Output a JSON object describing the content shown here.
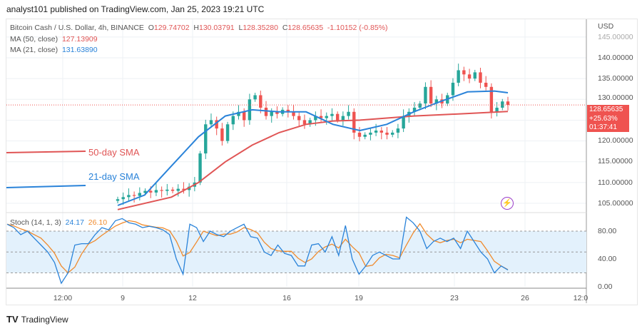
{
  "published": "analyst101 published on TradingView.com, Jan 25, 2023 19:21 UTC",
  "symbol": {
    "name": "Bitcoin Cash / U.S. Dollar, 4h, BINANCE",
    "o_label": "O",
    "open": "129.74702",
    "h_label": "H",
    "high": "130.03791",
    "l_label": "L",
    "low": "128.35280",
    "c_label": "C",
    "close": "128.65635",
    "change": "-1.10152 (-0.85%)"
  },
  "ma50": {
    "label": "MA (50, close)",
    "value": "127.13909",
    "color": "#e05555"
  },
  "ma21": {
    "label": "MA (21, close)",
    "value": "131.63890",
    "color": "#2a83d9"
  },
  "stoch": {
    "label": "Stoch (14, 1, 3)",
    "k": "24.17",
    "d": "26.10",
    "k_color": "#2a83d9",
    "d_color": "#f08a2c"
  },
  "price_axis": {
    "currency": "USD",
    "ticks": [
      "145.00000",
      "140.00000",
      "135.00000",
      "130.00000",
      "120.00000",
      "115.00000",
      "110.00000",
      "105.00000"
    ]
  },
  "price_badge": {
    "price": "128.65635",
    "change": "+25.63%",
    "countdown": "01:37:41"
  },
  "stoch_axis": {
    "ticks": [
      "80.00",
      "40.00",
      "0.00"
    ]
  },
  "time_axis": {
    "ticks": [
      "12:00",
      "9",
      "12",
      "16",
      "19",
      "23",
      "26",
      "12:0"
    ]
  },
  "annotations": {
    "sma50": "50-day SMA",
    "sma21": "21-day SMA"
  },
  "brand": "TradingView",
  "colors": {
    "up": "#26a69a",
    "down": "#ef5350",
    "stoch_band": "#e3f1fc"
  },
  "chart_data": {
    "type": "candlestick",
    "closes": [
      106,
      106.5,
      107,
      106.8,
      107.5,
      108,
      107.6,
      108.2,
      108,
      108.3,
      108,
      108.5,
      108.2,
      109,
      110,
      117,
      124,
      125,
      123,
      120,
      124,
      126,
      127,
      125,
      130,
      131,
      128,
      126,
      127,
      126.5,
      127.5,
      127,
      126,
      125,
      124,
      125,
      126,
      125.5,
      126,
      126.5,
      125,
      126,
      127,
      122,
      121,
      121.5,
      122,
      122.5,
      122,
      121.5,
      122,
      123,
      126,
      127,
      128,
      129,
      133,
      129,
      130,
      129,
      131,
      134,
      137,
      136,
      135,
      136.5,
      134,
      133,
      127,
      128,
      129.5,
      128.66
    ],
    "ma21": [
      [
        0,
        104.5
      ],
      [
        10,
        107
      ],
      [
        20,
        114
      ],
      [
        30,
        121
      ],
      [
        40,
        126
      ],
      [
        50,
        127.5
      ],
      [
        60,
        127
      ],
      [
        70,
        127
      ],
      [
        80,
        124
      ],
      [
        90,
        122.5
      ],
      [
        100,
        124
      ],
      [
        110,
        127
      ],
      [
        120,
        129.5
      ],
      [
        130,
        131.8
      ],
      [
        140,
        132
      ],
      [
        145,
        131.6
      ]
    ],
    "ma50": [
      [
        0,
        103.5
      ],
      [
        20,
        106.5
      ],
      [
        30,
        110
      ],
      [
        40,
        115
      ],
      [
        50,
        119
      ],
      [
        60,
        122
      ],
      [
        70,
        124
      ],
      [
        80,
        124.8
      ],
      [
        90,
        125
      ],
      [
        100,
        125.5
      ],
      [
        110,
        126
      ],
      [
        120,
        126.3
      ],
      [
        130,
        126.6
      ],
      [
        145,
        127.1
      ]
    ],
    "ylim": [
      103,
      146
    ],
    "stoch_k": [
      90,
      85,
      75,
      80,
      70,
      60,
      50,
      35,
      5,
      20,
      60,
      62,
      62,
      75,
      85,
      82,
      95,
      98,
      92,
      90,
      85,
      87,
      85,
      82,
      75,
      40,
      18,
      90,
      85,
      65,
      80,
      75,
      72,
      80,
      85,
      90,
      72,
      70,
      50,
      45,
      60,
      48,
      45,
      30,
      30,
      60,
      62,
      50,
      72,
      45,
      88,
      40,
      18,
      30,
      45,
      50,
      45,
      40,
      40,
      100,
      92,
      80,
      55,
      65,
      70,
      65,
      70,
      55,
      80,
      65,
      50,
      40,
      20,
      30,
      24.17
    ],
    "stoch_ylim": [
      0,
      100
    ],
    "stoch_levels": [
      80,
      50,
      20
    ]
  }
}
